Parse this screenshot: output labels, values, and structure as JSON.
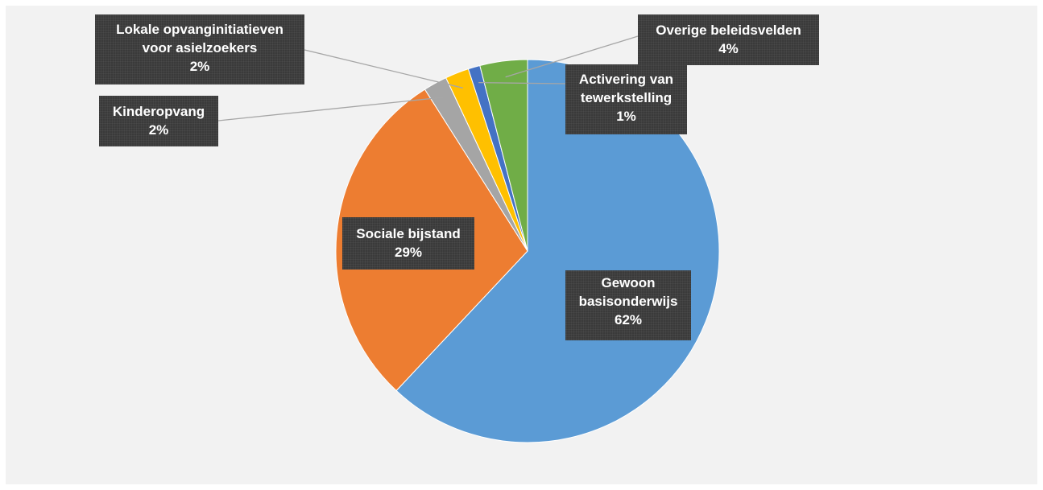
{
  "chart_data": {
    "type": "pie",
    "start_angle_deg": 0,
    "direction": "clockwise",
    "slices": [
      {
        "label": "Gewoon basisonderwijs",
        "value": 62,
        "display": "62%",
        "color": "#5b9bd5"
      },
      {
        "label": "Sociale bijstand",
        "value": 29,
        "display": "29%",
        "color": "#ed7d31"
      },
      {
        "label": "Kinderopvang",
        "value": 2,
        "display": "2%",
        "color": "#a5a5a5"
      },
      {
        "label": "Lokale opvanginitiatieven voor asielzoekers",
        "value": 2,
        "display": "2%",
        "color": "#ffc000"
      },
      {
        "label": "Activering van tewerkstelling",
        "value": 1,
        "display": "1%",
        "color": "#4472c4"
      },
      {
        "label": "Overige beleidsvelden",
        "value": 4,
        "display": "4%",
        "color": "#70ad47"
      }
    ]
  }
}
